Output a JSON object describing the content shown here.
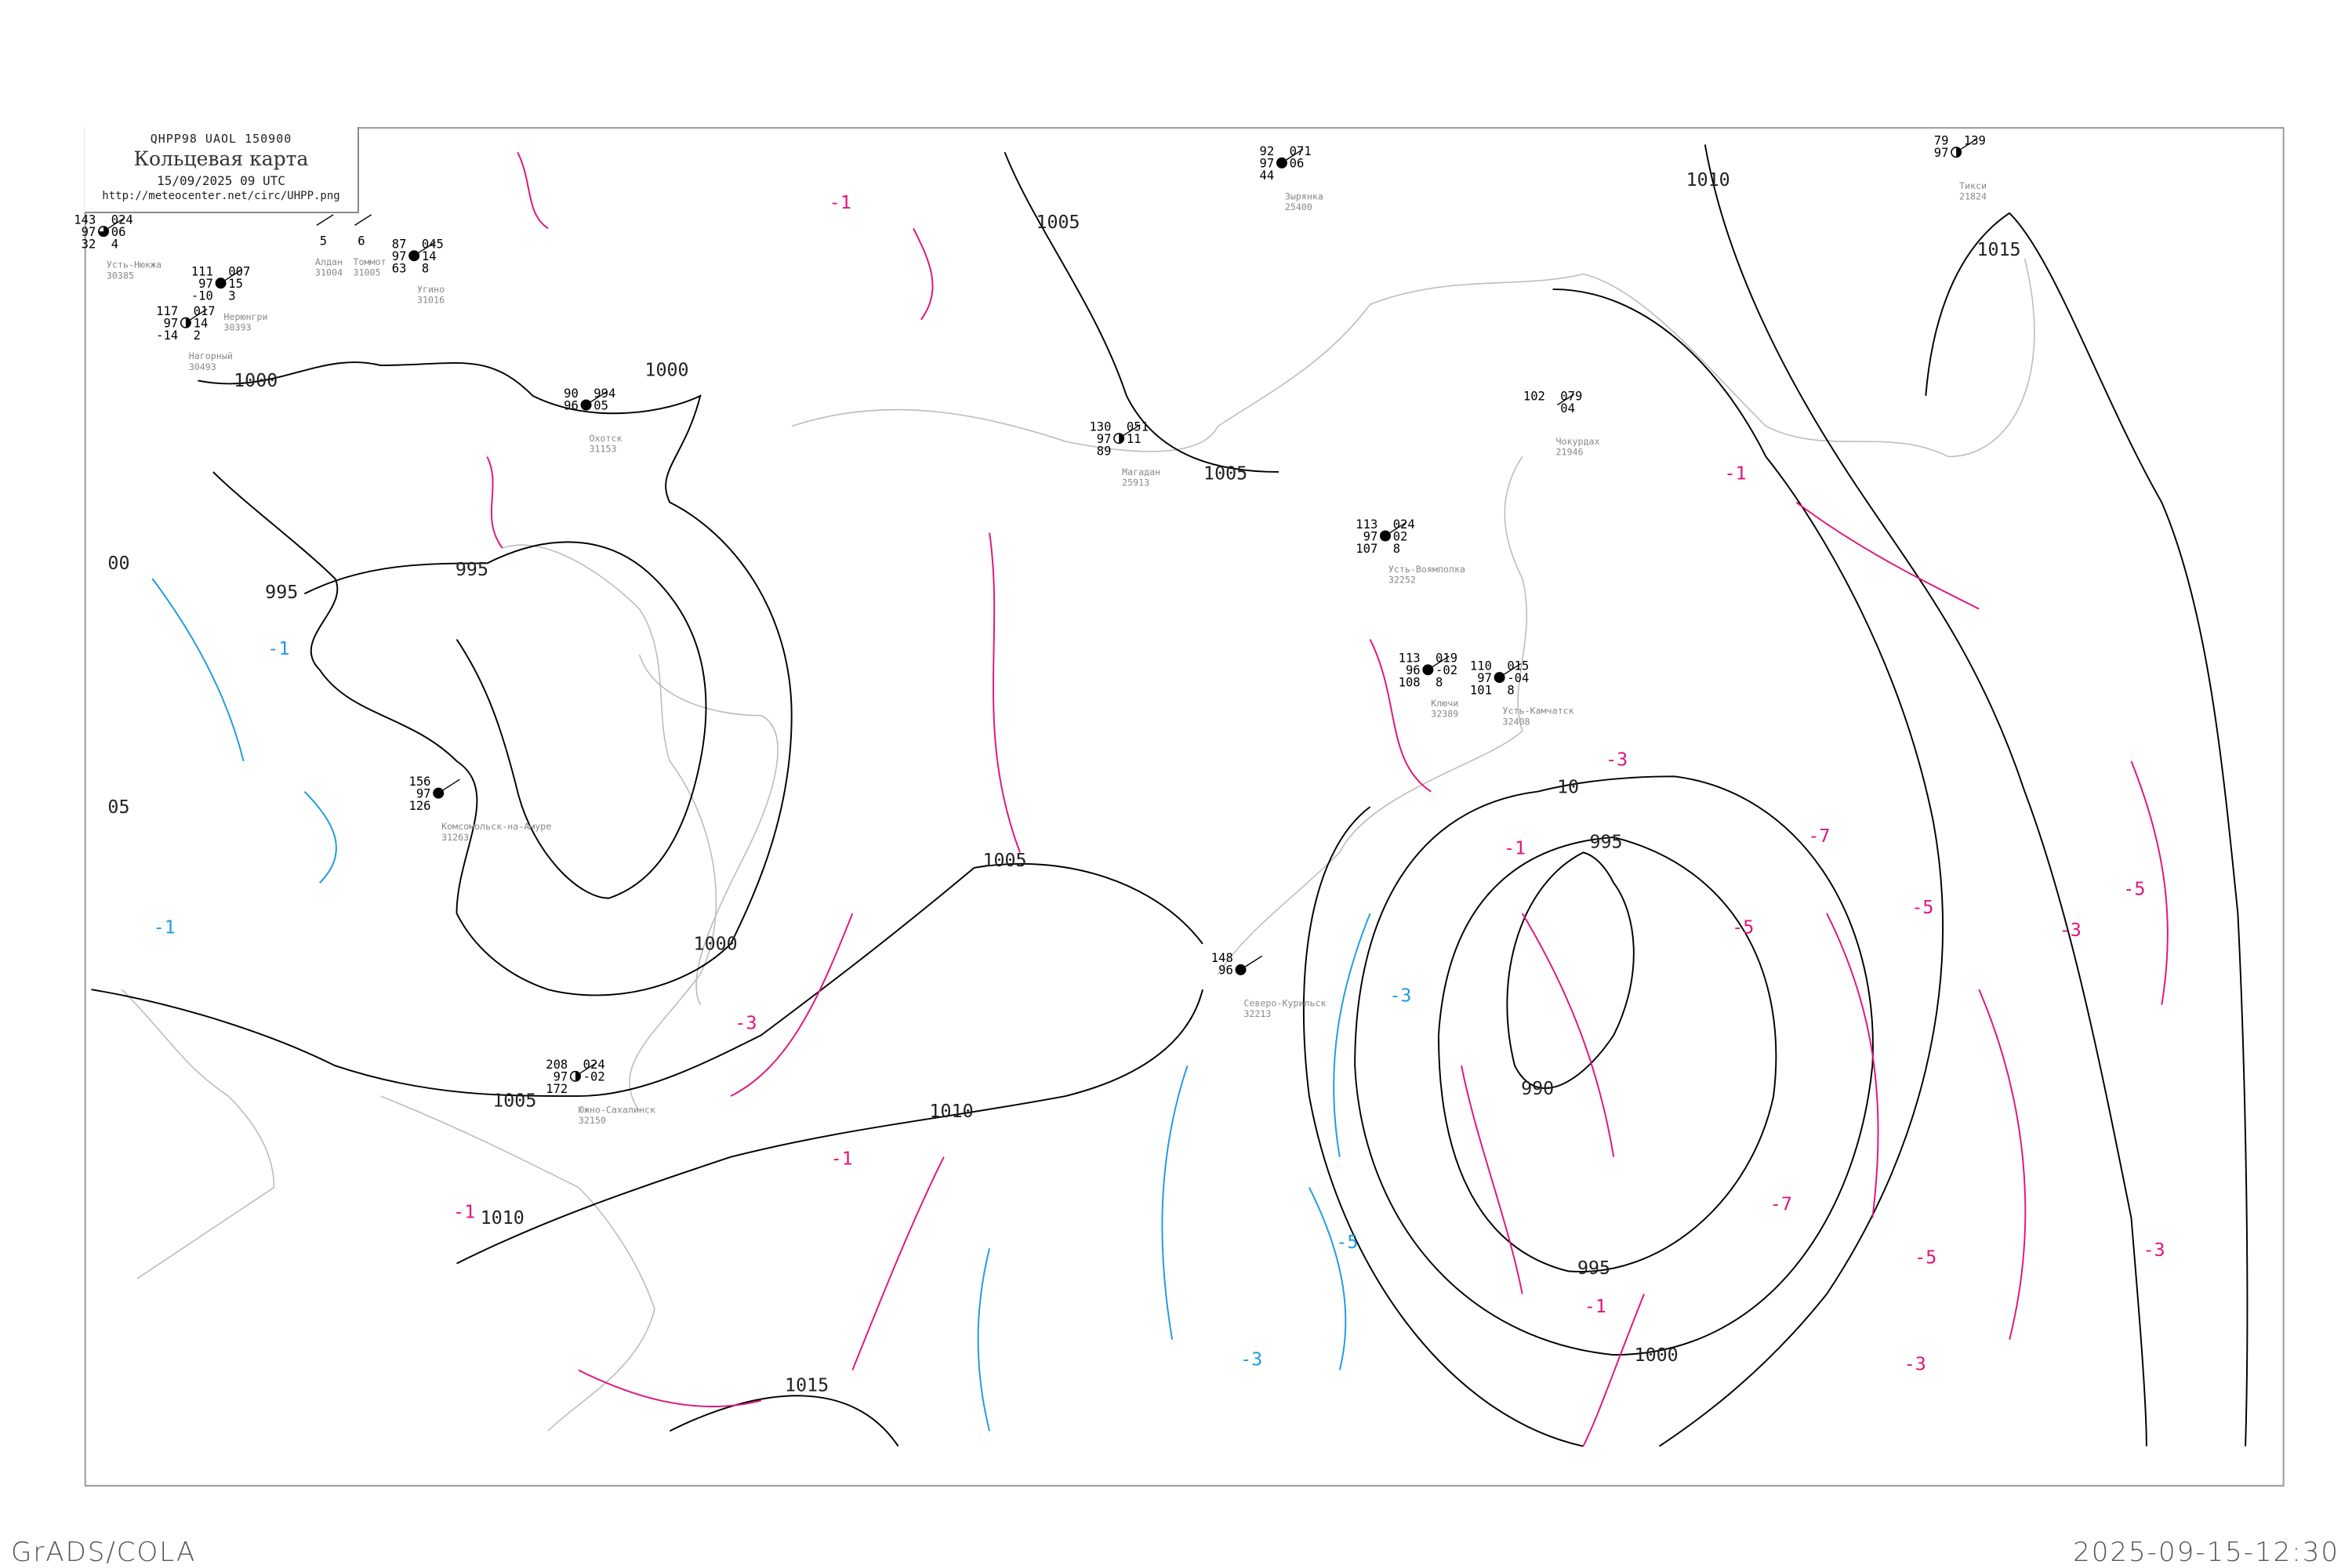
{
  "header": {
    "code": "QHPP98   UAOL   150900",
    "title": "Кольцевая карта",
    "date": "15/09/2025 09 UTC",
    "url": "http://meteocenter.net/circ/UHPP.png"
  },
  "footer": {
    "left": "GrADS/COLA",
    "right": "2025-09-15-12:30"
  },
  "colors": {
    "isobar": "#000000",
    "coastline": "#bbbbbb",
    "pressure_fall": "#e0147a",
    "pressure_rise": "#1e9be0",
    "station_name": "#888888",
    "precip_marker": "#22bb33",
    "fog_marker": "#ffff99"
  },
  "isobar_labels": [
    "1000",
    "1000",
    "1000",
    "995",
    "995",
    "995",
    "1005",
    "1005",
    "1005",
    "1005",
    "1010",
    "1010",
    "1010",
    "1015",
    "1015",
    "990",
    "995",
    "1000",
    "00",
    "05",
    "10"
  ],
  "tendency_labels": {
    "fall": [
      "-1",
      "-1",
      "-1",
      "-3",
      "-3",
      "-5",
      "-5",
      "-7",
      "-7",
      "-5",
      "-3",
      "-3",
      "-1",
      "-1",
      "-1",
      "-3",
      "-5"
    ],
    "rise": [
      "-1",
      "-3",
      "-5",
      "-3",
      "-1"
    ]
  },
  "stations": [
    {
      "name": "Усть-Нюкжа",
      "id": "30385",
      "tl": "143",
      "tr": "024",
      "ml": "97",
      "mr": "06",
      "bl": "32",
      "br": "4",
      "cover": "three-quarter"
    },
    {
      "name": "Нерюнгри",
      "id": "30393",
      "tl": "111",
      "tr": "007",
      "ml": "97",
      "mr": "15",
      "bl": "-10",
      "br": "3",
      "cover": "full"
    },
    {
      "name": "Нагорный",
      "id": "30493",
      "tl": "117",
      "tr": "017",
      "ml": "97",
      "mr": "14",
      "bl": "-14",
      "br": "2",
      "cover": "half"
    },
    {
      "name": "Алдан",
      "id": "31004",
      "tl": "",
      "tr": "",
      "ml": "",
      "mr": "",
      "bl": "",
      "br": "5",
      "cover": "none"
    },
    {
      "name": "Томмот",
      "id": "31005",
      "tl": "",
      "tr": "",
      "ml": "",
      "mr": "",
      "bl": "",
      "br": "6",
      "cover": "none"
    },
    {
      "name": "Угино",
      "id": "31016",
      "tl": "87",
      "tr": "045",
      "ml": "97",
      "mr": "14",
      "bl": "63",
      "br": "8",
      "cover": "full"
    },
    {
      "name": "Охотск",
      "id": "31153",
      "tl": "90",
      "tr": "994",
      "ml": "96",
      "mr": "05",
      "bl": "",
      "br": "",
      "cover": "full"
    },
    {
      "name": "Магадан",
      "id": "25913",
      "tl": "130",
      "tr": "051",
      "ml": "97",
      "mr": "11",
      "bl": "89",
      "br": "",
      "cover": "half"
    },
    {
      "name": "Комсомольск-на-Амуре",
      "id": "31263",
      "tl": "156",
      "tr": "",
      "ml": "97",
      "mr": "",
      "bl": "126",
      "br": "",
      "cover": "full"
    },
    {
      "name": "Южно-Сахалинск",
      "id": "32150",
      "tl": "208",
      "tr": "024",
      "ml": "97",
      "mr": "-02",
      "bl": "172",
      "br": "",
      "cover": "half"
    },
    {
      "name": "Усть-Воямполка",
      "id": "32252",
      "tl": "113",
      "tr": "024",
      "ml": "97",
      "mr": "02",
      "bl": "107",
      "br": "8",
      "cover": "full"
    },
    {
      "name": "Ключи",
      "id": "32389",
      "tl": "113",
      "tr": "019",
      "ml": "96",
      "mr": "-02",
      "bl": "108",
      "br": "8",
      "cover": "full"
    },
    {
      "name": "Усть-Камчатск",
      "id": "32408",
      "tl": "110",
      "tr": "015",
      "ml": "97",
      "mr": "-04",
      "bl": "101",
      "br": "8",
      "cover": "full"
    },
    {
      "name": "Северо-Курильск",
      "id": "32213",
      "tl": "148",
      "tr": "",
      "ml": "96",
      "mr": "",
      "bl": "",
      "br": "",
      "cover": "full"
    },
    {
      "name": "Тикси",
      "id": "21824",
      "tl": "79",
      "tr": "139",
      "ml": "97",
      "mr": "",
      "bl": "",
      "br": "",
      "cover": "half"
    },
    {
      "name": "Чокурдах",
      "id": "21946",
      "tl": "102",
      "tr": "079",
      "ml": "",
      "mr": "04",
      "bl": "",
      "br": "",
      "cover": "none"
    },
    {
      "name": "Зырянка",
      "id": "25400",
      "tl": "92",
      "tr": "071",
      "ml": "97",
      "mr": "06",
      "bl": "44",
      "br": "",
      "cover": "full"
    }
  ]
}
